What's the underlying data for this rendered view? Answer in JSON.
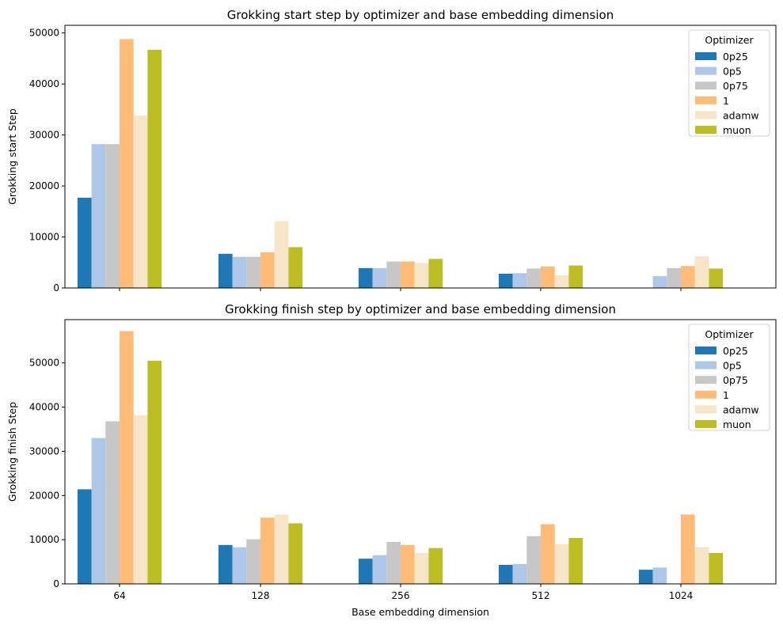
{
  "chart_data": [
    {
      "type": "bar",
      "title": "Grokking start step by optimizer and base embedding dimension",
      "xlabel": "",
      "ylabel": "Grokking start Step",
      "categories": [
        "64",
        "128",
        "256",
        "512",
        "1024"
      ],
      "ylim": [
        0,
        51500
      ],
      "yticks": [
        0,
        10000,
        20000,
        30000,
        40000,
        50000
      ],
      "show_xtick_labels": false,
      "legend_title": "Optimizer",
      "legend_position": "top-right",
      "series": [
        {
          "name": "0p25",
          "color": "#1f77b4",
          "values": [
            17700,
            6700,
            3900,
            2800,
            0
          ]
        },
        {
          "name": "0p5",
          "color": "#aec7e8",
          "values": [
            28200,
            6100,
            3900,
            2900,
            2300
          ]
        },
        {
          "name": "0p75",
          "color": "#c7c7c7",
          "values": [
            28200,
            6100,
            5200,
            3800,
            3900
          ]
        },
        {
          "name": "1",
          "color": "#ffbb78",
          "values": [
            48800,
            7000,
            5200,
            4200,
            4300
          ]
        },
        {
          "name": "adamw",
          "color": "#f7e5c8",
          "values": [
            33800,
            13100,
            4900,
            2500,
            6200
          ]
        },
        {
          "name": "muon",
          "color": "#bcbd22",
          "values": [
            46700,
            8000,
            5700,
            4400,
            3800
          ]
        }
      ]
    },
    {
      "type": "bar",
      "title": "Grokking finish step by optimizer and base embedding dimension",
      "xlabel": "Base embedding dimension",
      "ylabel": "Grokking finish Step",
      "categories": [
        "64",
        "128",
        "256",
        "512",
        "1024"
      ],
      "ylim": [
        0,
        59800
      ],
      "yticks": [
        0,
        10000,
        20000,
        30000,
        40000,
        50000
      ],
      "show_xtick_labels": true,
      "legend_title": "Optimizer",
      "legend_position": "top-right",
      "series": [
        {
          "name": "0p25",
          "color": "#1f77b4",
          "values": [
            21400,
            8800,
            5700,
            4300,
            3200
          ]
        },
        {
          "name": "0p5",
          "color": "#aec7e8",
          "values": [
            33000,
            8300,
            6500,
            4500,
            3700
          ]
        },
        {
          "name": "0p75",
          "color": "#c7c7c7",
          "values": [
            36800,
            10100,
            9500,
            10800,
            0
          ]
        },
        {
          "name": "1",
          "color": "#ffbb78",
          "values": [
            57200,
            15000,
            8800,
            13500,
            15700
          ]
        },
        {
          "name": "adamw",
          "color": "#f7e5c8",
          "values": [
            38200,
            15700,
            7000,
            9000,
            8300
          ]
        },
        {
          "name": "muon",
          "color": "#bcbd22",
          "values": [
            50500,
            13700,
            8100,
            10400,
            7000
          ]
        }
      ]
    }
  ]
}
